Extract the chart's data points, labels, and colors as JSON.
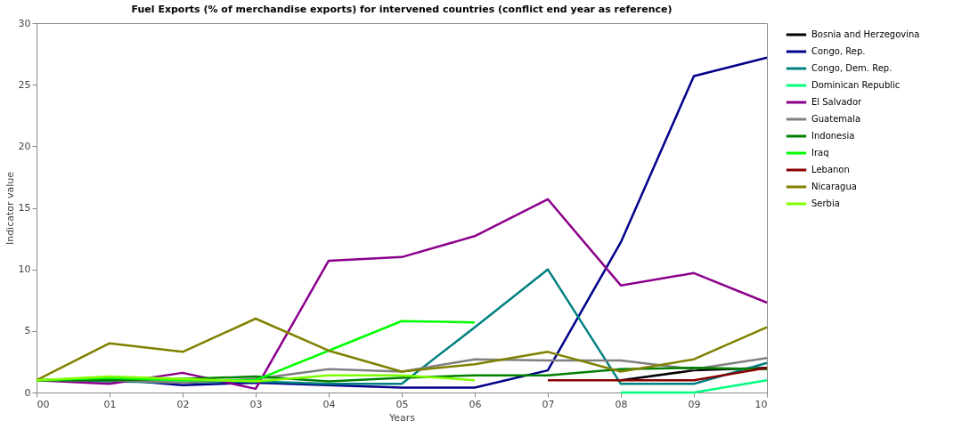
{
  "chart_data": {
    "type": "line",
    "title": "Fuel Exports (% of merchandise exports) for intervened countries (conflict end year as reference)",
    "xlabel": "Years",
    "ylabel": "Indicator value",
    "xlim": [
      0,
      10
    ],
    "xticks": [
      {
        "value": 0,
        "label": "00"
      },
      {
        "value": 1,
        "label": "01"
      },
      {
        "value": 2,
        "label": "02"
      },
      {
        "value": 3,
        "label": "03"
      },
      {
        "value": 4,
        "label": "04"
      },
      {
        "value": 5,
        "label": "05"
      },
      {
        "value": 6,
        "label": "06"
      },
      {
        "value": 7,
        "label": "07"
      },
      {
        "value": 8,
        "label": "08"
      },
      {
        "value": 9,
        "label": "09"
      },
      {
        "value": 10,
        "label": "10"
      }
    ],
    "ylim": [
      0,
      30
    ],
    "yticks": [
      0,
      5,
      10,
      15,
      20,
      25,
      30
    ],
    "grid": false,
    "legend": "top right",
    "marker": "none",
    "line_style": "solid",
    "series": [
      {
        "name": "Bosnia and Herzegovina",
        "color": "#000000",
        "x": [
          8,
          9,
          10
        ],
        "values": [
          1.0,
          1.8,
          2.0
        ]
      },
      {
        "name": "Congo, Rep.",
        "color": "#00008b",
        "x": [
          0,
          1,
          2,
          3,
          4,
          5,
          6,
          7,
          8,
          9,
          10
        ],
        "values": [
          1.0,
          1.1,
          0.6,
          0.8,
          0.6,
          0.4,
          0.4,
          1.8,
          12.2,
          25.7,
          27.2
        ]
      },
      {
        "name": "Congo, Dem. Rep.",
        "color": "#008080",
        "x": [
          0,
          1,
          2,
          3,
          4,
          5,
          6,
          7,
          8,
          9,
          10
        ],
        "values": [
          1.0,
          0.9,
          0.8,
          0.9,
          0.7,
          0.7,
          5.3,
          10.0,
          0.7,
          0.7,
          2.4
        ]
      },
      {
        "name": "Dominican Republic",
        "color": "#00ff7f",
        "x": [
          8,
          9,
          10
        ],
        "values": [
          0.0,
          0.0,
          1.0
        ]
      },
      {
        "name": "El Salvador",
        "color": "#8b008b",
        "x": [
          0,
          1,
          2,
          3,
          4,
          5,
          6,
          7,
          8,
          9,
          10
        ],
        "values": [
          1.0,
          0.7,
          1.6,
          0.3,
          10.7,
          11.0,
          12.7,
          15.7,
          8.7,
          9.7,
          7.3
        ]
      },
      {
        "name": "Guatemala",
        "color": "#808080",
        "x": [
          0,
          1,
          2,
          3,
          4,
          5,
          6,
          7,
          8,
          9,
          10
        ],
        "values": [
          1.0,
          1.0,
          0.8,
          1.1,
          1.9,
          1.7,
          2.7,
          2.6,
          2.6,
          1.9,
          2.8
        ]
      },
      {
        "name": "Indonesia",
        "color": "#008000",
        "x": [
          0,
          1,
          2,
          3,
          4,
          5,
          6,
          7,
          8,
          9,
          10
        ],
        "values": [
          1.0,
          1.0,
          1.1,
          1.3,
          0.9,
          1.2,
          1.4,
          1.4,
          1.9,
          2.0,
          1.9
        ]
      },
      {
        "name": "Iraq",
        "color": "#00ff00",
        "x": [
          0,
          1,
          2,
          3,
          4,
          5,
          6
        ],
        "values": [
          1.0,
          1.2,
          1.0,
          1.0,
          3.4,
          5.8,
          5.7
        ]
      },
      {
        "name": "Lebanon",
        "color": "#8b0000",
        "x": [
          7,
          8,
          9,
          10
        ],
        "values": [
          1.0,
          1.0,
          1.0,
          2.0
        ]
      },
      {
        "name": "Nicaragua",
        "color": "#808000",
        "x": [
          0,
          1,
          2,
          3,
          4,
          5,
          6,
          7,
          8,
          9,
          10
        ],
        "values": [
          1.0,
          4.0,
          3.3,
          6.0,
          3.4,
          1.7,
          2.3,
          3.3,
          1.7,
          2.7,
          5.3
        ]
      },
      {
        "name": "Serbia",
        "color": "#7fff00",
        "x": [
          0,
          1,
          2,
          3,
          4,
          5,
          6
        ],
        "values": [
          1.0,
          1.3,
          1.1,
          0.9,
          1.4,
          1.4,
          1.0
        ]
      }
    ]
  }
}
